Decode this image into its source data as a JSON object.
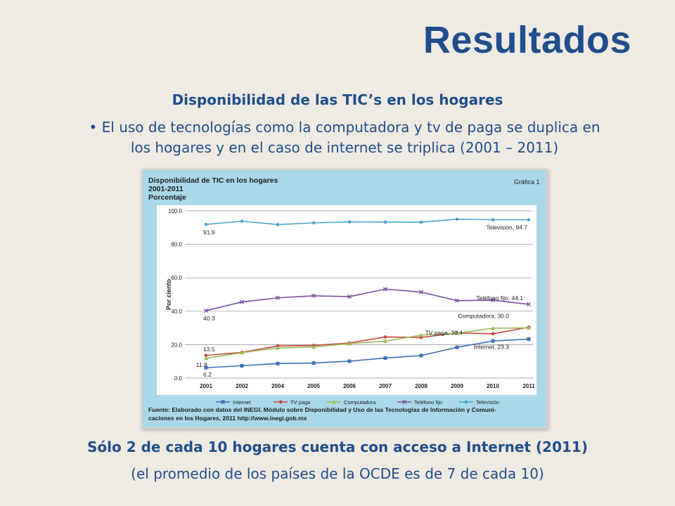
{
  "slide": {
    "title": "Resultados",
    "subtitle": "Disponibilidad de las TIC’s en los hogares",
    "bullet": "• El uso de tecnologías como la computadora y tv de paga se duplica en los hogares y en el caso de internet se triplica (2001 – 2011)",
    "conclusion": "Sólo 2 de cada 10 hogares cuenta con acceso a Internet (2011)",
    "note": "(el promedio  de los países de la OCDE es de 7 de cada 10)"
  },
  "chart_data": {
    "type": "line",
    "title_lines": [
      "Disponibilidad de TIC en los hogares",
      "2001-2011",
      "Porcentaje"
    ],
    "figure_label": "Gráfica 1",
    "ylabel": "Por ciento",
    "ylim": [
      0,
      100
    ],
    "yticks": [
      "100.0",
      "80.0",
      "60.0",
      "40.0",
      "20.0",
      "0.0"
    ],
    "categories": [
      "2001",
      "2002",
      "2004",
      "2005",
      "2006",
      "2007",
      "2008",
      "2009",
      "2010",
      "2011"
    ],
    "series": [
      {
        "name": "Internet",
        "color": "#3a6fb7",
        "marker": "square",
        "values": [
          6.2,
          7.4,
          8.7,
          9.0,
          10.1,
          12.0,
          13.5,
          18.4,
          22.2,
          23.3
        ]
      },
      {
        "name": "TV paga",
        "color": "#c9463d",
        "marker": "diamond",
        "values": [
          13.5,
          15.4,
          19.2,
          19.5,
          21.0,
          24.6,
          24.3,
          27.0,
          26.5,
          30.4
        ]
      },
      {
        "name": "Computadora",
        "color": "#9bbb59",
        "marker": "triangle",
        "values": [
          11.8,
          15.2,
          18.0,
          18.6,
          20.6,
          22.1,
          25.7,
          26.8,
          29.8,
          30.0
        ]
      },
      {
        "name": "Teléfono fijo",
        "color": "#7b4fa0",
        "marker": "x",
        "values": [
          40.3,
          45.5,
          48.0,
          49.2,
          48.7,
          53.2,
          51.4,
          46.3,
          46.6,
          44.1
        ]
      },
      {
        "name": "Televisión",
        "color": "#4aa3c9",
        "marker": "circle",
        "values": [
          91.9,
          93.8,
          91.8,
          92.8,
          93.4,
          93.3,
          93.2,
          95.0,
          94.7,
          94.7
        ]
      }
    ],
    "data_labels": [
      "91.9",
      "Televisión,  94.7",
      "Teléfono fijo,  44.1",
      "40.3",
      "Computadora,  30.0",
      "TV paga,  30.4",
      "Internet,  23.3",
      "13.5",
      "11.8",
      "6.2"
    ],
    "legend": [
      "Internet",
      "TV paga",
      "Computadora",
      "Teléfono fijo",
      "Televisión"
    ],
    "legend_position": "bottom",
    "source_lines": [
      "Fuente: Elaborado con datos del INEGI. Módulo sobre Disponibilidad y Uso de las Tecnologías de Información y Comuni-",
      "caciones en los Hogares, 2011 http://www.inegi.gob.mx"
    ],
    "grid": true
  }
}
